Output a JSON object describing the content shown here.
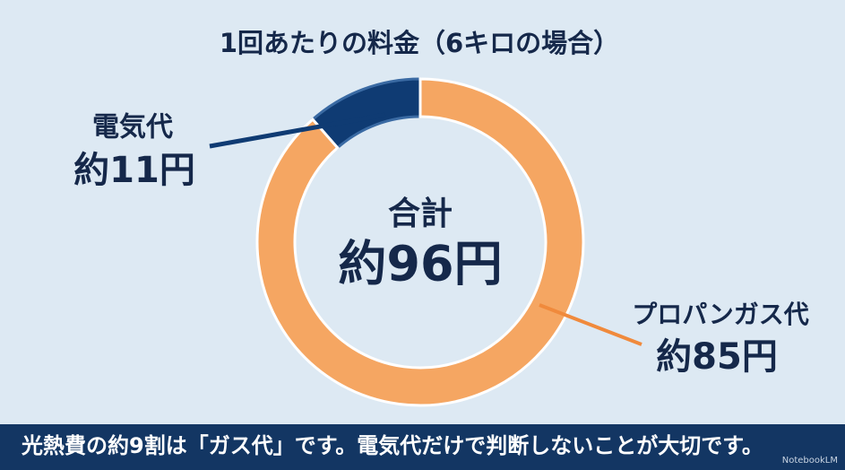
{
  "chart_data": {
    "type": "donut",
    "title": "1回あたりの料金（6キロの場合）",
    "categories": [
      "電気代",
      "プロパンガス代"
    ],
    "values": [
      11,
      85
    ],
    "value_labels": [
      "約11円",
      "約85円"
    ],
    "colors": [
      "#0f3b73",
      "#f5a662"
    ],
    "center_text": [
      "合計",
      "約96円"
    ]
  },
  "footer": {
    "caption": "光熱費の約9割は「ガス代」です。電気代だけで判断しないことが大切です。",
    "watermark": "NotebookLM"
  }
}
